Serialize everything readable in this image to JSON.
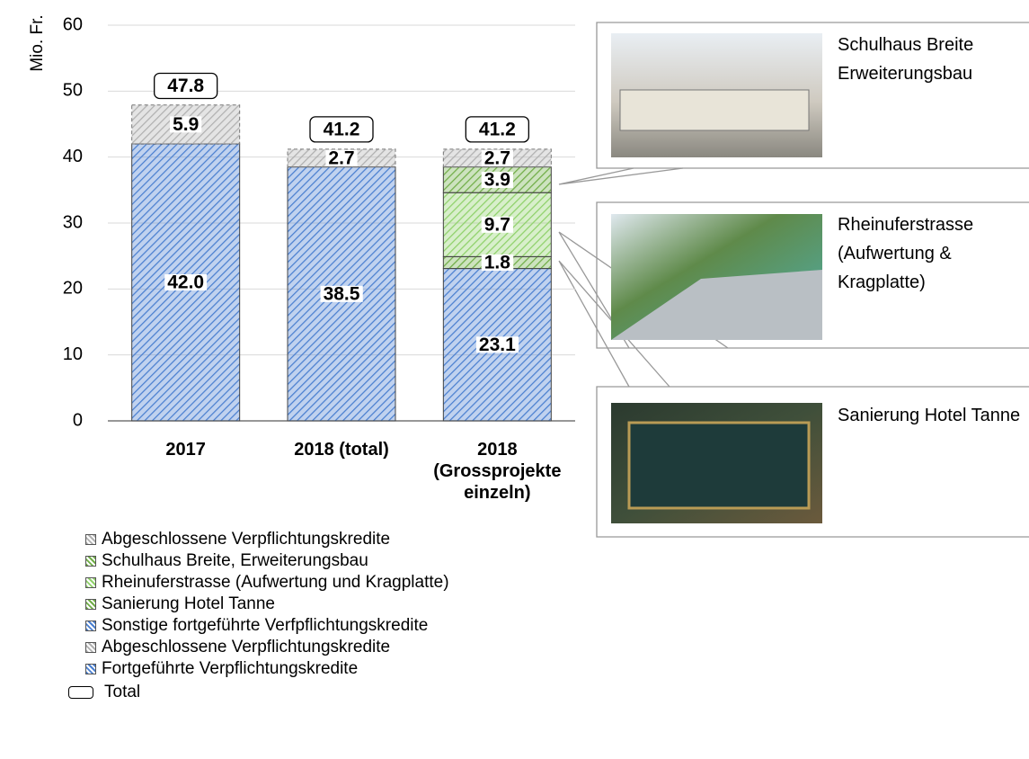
{
  "chart_data": {
    "type": "bar",
    "stacked": true,
    "y_label": "Mio. Fr.",
    "categories": [
      "2017",
      "2018 (total)",
      "2018 (Grossprojekte einzeln)"
    ],
    "series": [
      {
        "name": "Abgeschlossene Verpflichtungskredite",
        "color": "#b0b0b0",
        "values": [
          null,
          null,
          2.7
        ]
      },
      {
        "name": "Schulhaus Breite, Erweiterungsbau",
        "color": "#70ad47",
        "values": [
          null,
          null,
          3.9
        ]
      },
      {
        "name": "Rheinuferstrasse (Aufwertung und Kragplatte)",
        "color": "#8fd16a",
        "values": [
          null,
          null,
          9.7
        ]
      },
      {
        "name": "Sanierung Hotel Tanne",
        "color": "#70ad47",
        "values": [
          null,
          null,
          1.8
        ]
      },
      {
        "name": "Sonstige fortgeführte Verfpflichtungskredite",
        "color": "#4a7fd0",
        "values": [
          null,
          null,
          23.1
        ]
      },
      {
        "name": "Abgeschlossene Verpflichtungskredite",
        "color": "#b0b0b0",
        "values": [
          5.9,
          2.7,
          null
        ]
      },
      {
        "name": "Fortgeführte Verpflichtungskredite",
        "color": "#4a7fd0",
        "values": [
          42.0,
          38.5,
          null
        ],
        "value_labels": [
          "42.0",
          "38.5",
          null
        ]
      }
    ],
    "totals": {
      "name": "Total",
      "values": [
        47.8,
        41.2,
        41.2
      ]
    },
    "ylim": [
      0,
      60
    ],
    "yticks": [
      0,
      10,
      20,
      30,
      40,
      50,
      60
    ],
    "grid": true,
    "annotations": [
      "Schulhaus Breite Erweiterungsbau",
      "Rheinuferstrasse (Aufwertung & Kragplatte)",
      "Sanierung Hotel Tanne"
    ]
  }
}
